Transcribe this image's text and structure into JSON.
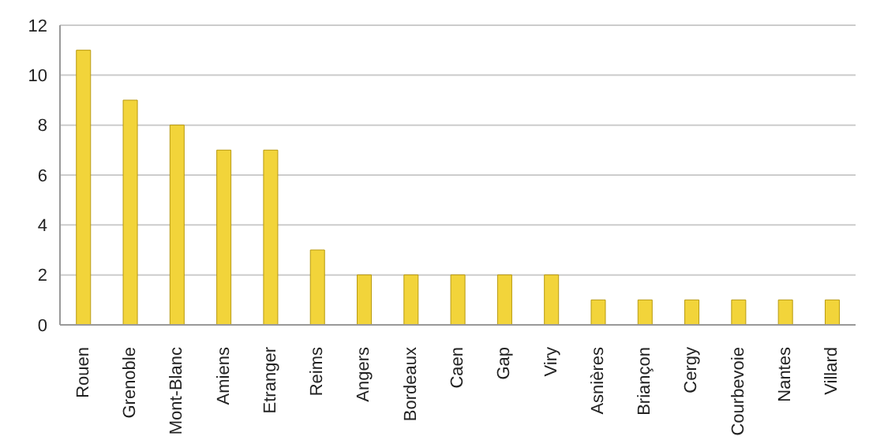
{
  "chart_data": {
    "type": "bar",
    "categories": [
      "Rouen",
      "Grenoble",
      "Mont-Blanc",
      "Amiens",
      "Etranger",
      "Reims",
      "Angers",
      "Bordeaux",
      "Caen",
      "Gap",
      "Viry",
      "Asnières",
      "Briançon",
      "Cergy",
      "Courbevoie",
      "Nantes",
      "Villard"
    ],
    "values": [
      11,
      9,
      8,
      7,
      7,
      3,
      2,
      2,
      2,
      2,
      2,
      1,
      1,
      1,
      1,
      1,
      1
    ],
    "color": "#f2d43a",
    "ylim": [
      0,
      12
    ],
    "yticks": [
      0,
      2,
      4,
      6,
      8,
      10,
      12
    ],
    "grid": "y"
  }
}
